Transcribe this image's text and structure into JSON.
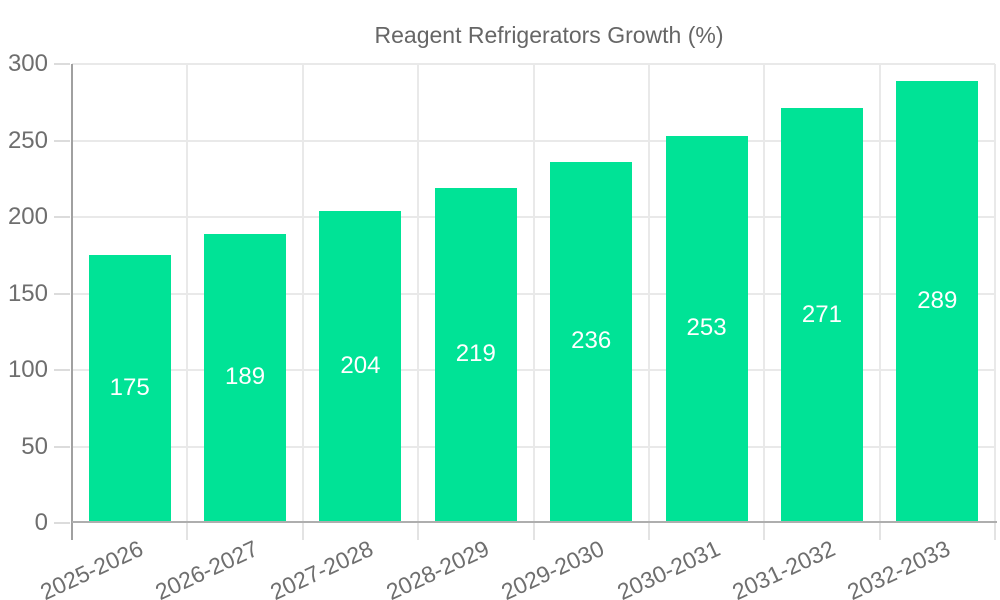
{
  "chart_data": {
    "type": "bar",
    "title": "Reagent Refrigerators Growth (%)",
    "categories": [
      "2025-2026",
      "2026-2027",
      "2027-2028",
      "2028-2029",
      "2029-2030",
      "2030-2031",
      "2031-2032",
      "2032-2033"
    ],
    "values": [
      175,
      189,
      204,
      219,
      236,
      253,
      271,
      289
    ],
    "xlabel": "",
    "ylabel": "",
    "ylim": [
      0,
      300
    ],
    "yticks": [
      0,
      50,
      100,
      150,
      200,
      250,
      300
    ],
    "grid": true,
    "legend_position": "top",
    "bar_color": "#00E396",
    "value_label_color": "#ffffff",
    "axis_text_color": "#6e6e6e",
    "legend_text_color": "#666666",
    "gridline_color": "#e9e9e9"
  }
}
